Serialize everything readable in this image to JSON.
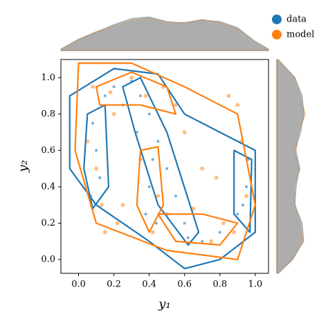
{
  "chart_data": {
    "type": "scatter",
    "xlabel": "y₁",
    "ylabel": "y₂",
    "xlim": [
      -0.1,
      1.075
    ],
    "ylim": [
      -0.076,
      1.1
    ],
    "xticks": [
      {
        "value": 0,
        "label": "0.0"
      },
      0.2,
      0.4,
      0.6,
      0.8,
      {
        "value": 1,
        "label": "1.0"
      }
    ],
    "yticks": [
      {
        "value": 0,
        "label": "0.0"
      },
      0.2,
      0.4,
      0.6,
      0.8,
      {
        "value": 1,
        "label": "1.0"
      }
    ],
    "legend": "upper right",
    "density_x_grid": [
      -0.1,
      0,
      0.1,
      0.2,
      0.3,
      0.4,
      0.5,
      0.6,
      0.7,
      0.8,
      0.9,
      1.0,
      1.075
    ],
    "density_y_grid": [
      -0.076,
      0,
      0.1,
      0.2,
      0.3,
      0.4,
      0.5,
      0.6,
      0.7,
      0.8,
      0.9,
      1.0,
      1.1
    ],
    "series": [
      {
        "name": "data",
        "color": "#1f77b4",
        "x": [
          0.08,
          0.1,
          0.12,
          0.07,
          0.15,
          0.2,
          0.3,
          0.35,
          0.4,
          0.45,
          0.5,
          0.55,
          0.6,
          0.62,
          0.7,
          0.8,
          0.9,
          0.95,
          0.96,
          0.93,
          0.42,
          0.4,
          0.38,
          0.44,
          0.25,
          0.33
        ],
        "y": [
          0.75,
          0.6,
          0.45,
          0.35,
          0.9,
          0.95,
          0.98,
          0.9,
          0.8,
          0.65,
          0.5,
          0.35,
          0.2,
          0.12,
          0.1,
          0.15,
          0.25,
          0.4,
          0.55,
          0.3,
          0.55,
          0.4,
          0.25,
          0.2,
          0.85,
          0.7
        ],
        "contours": [
          {
            "x": [
              -0.05,
              0.2,
              0.45,
              0.6,
              0.8,
              1.0,
              1.0,
              0.8,
              0.6,
              0.4,
              0.1,
              -0.05
            ],
            "y": [
              0.9,
              1.05,
              1.02,
              0.8,
              0.7,
              0.6,
              0.15,
              0.0,
              -0.05,
              0.1,
              0.3,
              0.5
            ]
          },
          {
            "x": [
              0.25,
              0.35,
              0.5,
              0.68,
              0.62,
              0.45,
              0.32
            ],
            "y": [
              0.95,
              1.0,
              0.7,
              0.15,
              0.08,
              0.3,
              0.7
            ]
          },
          {
            "x": [
              0.05,
              0.15,
              0.17,
              0.08,
              0.03
            ],
            "y": [
              0.8,
              0.85,
              0.4,
              0.28,
              0.5
            ]
          },
          {
            "x": [
              0.88,
              0.98,
              0.97,
              0.88
            ],
            "y": [
              0.6,
              0.55,
              0.15,
              0.25
            ]
          }
        ],
        "x_density": [
          0.05,
          0.35,
          0.6,
          0.85,
          1.05,
          1.1,
          0.95,
          0.9,
          1.0,
          0.95,
          0.75,
          0.3,
          0.05
        ],
        "y_density": [
          0.05,
          0.5,
          0.9,
          0.85,
          0.6,
          0.65,
          0.75,
          0.6,
          0.8,
          0.9,
          0.85,
          0.6,
          0.05
        ]
      },
      {
        "name": "model",
        "color": "#ff7f0e",
        "x": [
          0.05,
          0.1,
          0.13,
          0.18,
          0.22,
          0.3,
          0.38,
          0.48,
          0.55,
          0.6,
          0.7,
          0.78,
          0.85,
          0.92,
          0.95,
          0.88,
          0.82,
          0.35,
          0.45,
          0.42,
          0.5,
          0.15,
          0.25,
          0.65,
          0.75,
          0.9,
          0.2,
          0.08
        ],
        "y": [
          0.65,
          0.5,
          0.3,
          0.92,
          0.2,
          1.0,
          0.9,
          0.95,
          0.85,
          0.7,
          0.5,
          0.45,
          0.9,
          0.65,
          0.35,
          0.15,
          0.2,
          0.55,
          0.35,
          0.15,
          0.25,
          0.15,
          0.3,
          0.28,
          0.1,
          0.85,
          0.8,
          0.95
        ],
        "contours": [
          {
            "x": [
              0.0,
              0.3,
              0.6,
              0.9,
              1.0,
              0.9,
              0.5,
              0.1,
              -0.02
            ],
            "y": [
              1.08,
              1.08,
              0.95,
              0.8,
              0.3,
              0.0,
              0.05,
              0.2,
              0.6
            ]
          },
          {
            "x": [
              0.1,
              0.3,
              0.5,
              0.55,
              0.35,
              0.12
            ],
            "y": [
              0.95,
              1.03,
              0.95,
              0.8,
              0.85,
              0.85
            ]
          },
          {
            "x": [
              0.35,
              0.45,
              0.48,
              0.4,
              0.33
            ],
            "y": [
              0.6,
              0.62,
              0.3,
              0.15,
              0.3
            ]
          },
          {
            "x": [
              0.45,
              0.7,
              0.9,
              0.8,
              0.55
            ],
            "y": [
              0.25,
              0.25,
              0.2,
              0.08,
              0.1
            ]
          }
        ],
        "x_density": [
          0.05,
          0.38,
          0.62,
          0.82,
          1.0,
          1.08,
          0.92,
          0.92,
          1.02,
          0.92,
          0.72,
          0.28,
          0.04
        ],
        "y_density": [
          0.06,
          0.55,
          0.88,
          0.8,
          0.62,
          0.6,
          0.78,
          0.65,
          0.75,
          0.95,
          0.8,
          0.62,
          0.05
        ]
      }
    ]
  }
}
